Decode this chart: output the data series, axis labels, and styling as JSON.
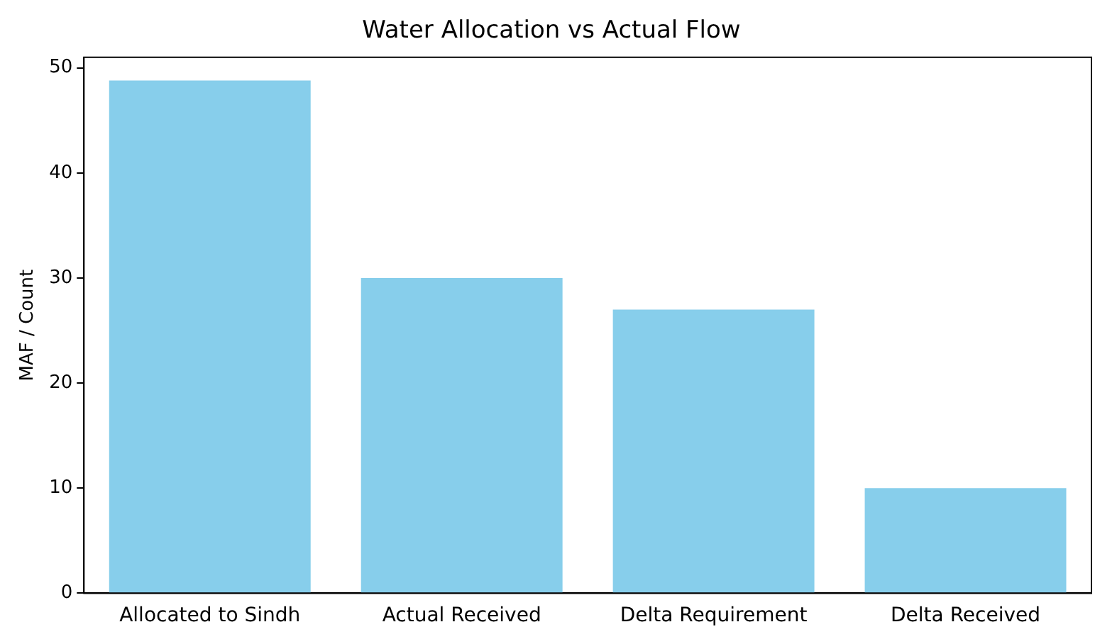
{
  "chart_data": {
    "type": "bar",
    "title": "Water Allocation vs Actual Flow",
    "ylabel": "MAF / Count",
    "categories": [
      "Allocated to Sindh",
      "Actual Received",
      "Delta Requirement",
      "Delta Received"
    ],
    "values": [
      48.8,
      30,
      27,
      10
    ],
    "color": "#87ceeb",
    "ylim": [
      0,
      51
    ],
    "yticks": [
      0,
      10,
      20,
      30,
      40,
      50
    ],
    "grid": false,
    "legend": false
  }
}
